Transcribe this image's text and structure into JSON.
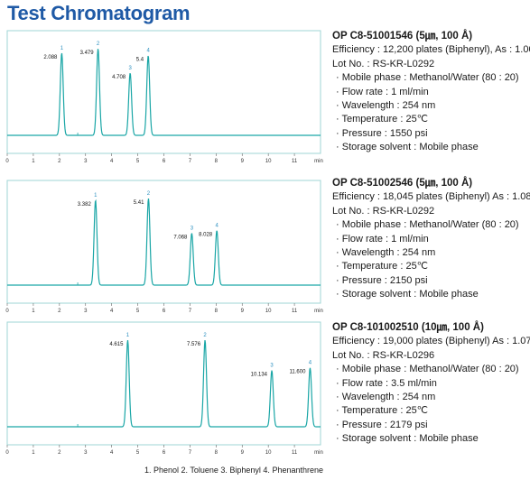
{
  "page_title": "Test Chromatogram",
  "legend_text": "1. Phenol  2. Toluene  3. Biphenyl  4. Phenanthrene",
  "colors": {
    "trace": "#1aa6a6",
    "frame": "#9fd4d4",
    "title": "#1f5aa6",
    "peak_num": "#2a8fbf"
  },
  "charts": [
    {
      "model": "OP C8-51001546 (5㎛, 100 Å)",
      "efficiency": "Efficiency : 12,200 plates (Biphenyl), As : 1.00",
      "lot": "Lot No. : RS-KR-L0292",
      "conditions": [
        "Mobile phase : Methanol/Water (80 : 20)",
        "Flow rate : 1 ml/min",
        "Wavelength : 254 nm",
        "Temperature : 25℃",
        "Pressure : 1550 psi",
        "Storage solvent : Mobile phase"
      ]
    },
    {
      "model": "OP C8-51002546 (5㎛, 100 Å)",
      "efficiency": "Efficiency : 18,045 plates (Biphenyl) As : 1.08",
      "lot": "Lot No. : RS-KR-L0292",
      "conditions": [
        "Mobile phase : Methanol/Water (80 : 20)",
        "Flow rate : 1 ml/min",
        "Wavelength : 254 nm",
        "Temperature : 25℃",
        "Pressure : 2150 psi",
        "Storage solvent : Mobile phase"
      ]
    },
    {
      "model": "OP C8-101002510 (10㎛, 100 Å)",
      "efficiency": "Efficiency : 19,000 plates (Biphenyl) As : 1.07",
      "lot": "Lot No. : RS-KR-L0296",
      "conditions": [
        "Mobile phase : Methanol/Water (80 : 20)",
        "Flow rate : 3.5 ml/min",
        "Wavelength : 254 nm",
        "Temperature : 25℃",
        "Pressure : 2179 psi",
        "Storage solvent : Mobile phase"
      ]
    }
  ],
  "chart_data": [
    {
      "type": "line",
      "xlabel": "min",
      "xlim": [
        0,
        12
      ],
      "x_ticks": [
        0,
        1,
        2,
        3,
        4,
        5,
        6,
        7,
        8,
        9,
        10,
        11
      ],
      "peaks": [
        {
          "label": "1",
          "rt_label": "2.088",
          "x": 2.088,
          "height": 0.95
        },
        {
          "label": "2",
          "rt_label": "3.479",
          "x": 3.479,
          "height": 1.0
        },
        {
          "label": "3",
          "rt_label": "4.708",
          "x": 4.708,
          "height": 0.72
        },
        {
          "label": "4",
          "rt_label": "5.4",
          "x": 5.4,
          "height": 0.92
        }
      ]
    },
    {
      "type": "line",
      "xlabel": "min",
      "xlim": [
        0,
        12
      ],
      "x_ticks": [
        0,
        1,
        2,
        3,
        4,
        5,
        6,
        7,
        8,
        9,
        10,
        11
      ],
      "peaks": [
        {
          "label": "1",
          "rt_label": "3.382",
          "x": 3.382,
          "height": 0.98
        },
        {
          "label": "2",
          "rt_label": "5.41",
          "x": 5.41,
          "height": 1.0
        },
        {
          "label": "3",
          "rt_label": "7.068",
          "x": 7.068,
          "height": 0.6
        },
        {
          "label": "4",
          "rt_label": "8.028",
          "x": 8.028,
          "height": 0.63
        }
      ]
    },
    {
      "type": "line",
      "xlabel": "min",
      "xlim": [
        0,
        12
      ],
      "x_ticks": [
        0,
        1,
        2,
        3,
        4,
        5,
        6,
        7,
        8,
        9,
        10,
        11
      ],
      "peaks": [
        {
          "label": "1",
          "rt_label": "4.615",
          "x": 4.615,
          "height": 1.0
        },
        {
          "label": "2",
          "rt_label": "7.576",
          "x": 7.576,
          "height": 1.0
        },
        {
          "label": "3",
          "rt_label": "10.134",
          "x": 10.134,
          "height": 0.65
        },
        {
          "label": "4",
          "rt_label": "11.600",
          "x": 11.6,
          "height": 0.68
        }
      ]
    }
  ]
}
